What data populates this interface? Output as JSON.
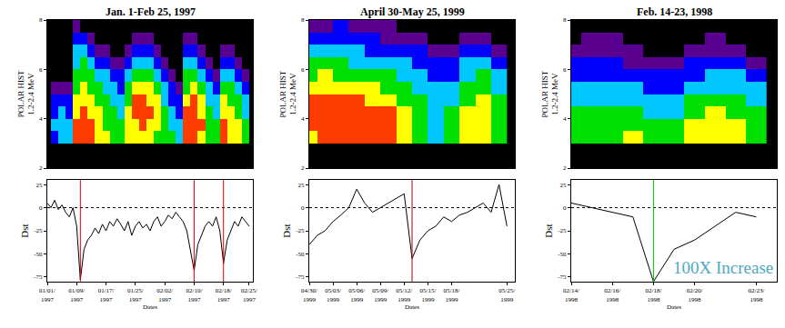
{
  "chart_data": [
    {
      "type": "heatmap",
      "title": "Jan. 1-Feb 25, 1997",
      "y_label": [
        "POLAR HIST",
        "1.2-2.4 MeV"
      ],
      "x": [
        "1997-01-01",
        "1997-01-03",
        "1997-01-05",
        "1997-01-07",
        "1997-01-09",
        "1997-01-11",
        "1997-01-13",
        "1997-01-15",
        "1997-01-17",
        "1997-01-19",
        "1997-01-21",
        "1997-01-23",
        "1997-01-25",
        "1997-01-27",
        "1997-01-29",
        "1997-01-31",
        "1997-02-02",
        "1997-02-04",
        "1997-02-06",
        "1997-02-08",
        "1997-02-10",
        "1997-02-12",
        "1997-02-14",
        "1997-02-16",
        "1997-02-18",
        "1997-02-20",
        "1997-02-22",
        "1997-02-24"
      ],
      "y": [
        3.25,
        3.75,
        4.25,
        4.75,
        5.25,
        5.75,
        6.25,
        6.75,
        7.25,
        7.75
      ],
      "z": [
        [
          0,
          0,
          0,
          0,
          0,
          0,
          0,
          0,
          0,
          0
        ],
        [
          2,
          3,
          2,
          2,
          1,
          0,
          0,
          0,
          0,
          0
        ],
        [
          3,
          3,
          3,
          2,
          1,
          0,
          0,
          0,
          0,
          0
        ],
        [
          3,
          3,
          2,
          2,
          1,
          0,
          0,
          0,
          0,
          0
        ],
        [
          6,
          6,
          5,
          5,
          4,
          4,
          3,
          3,
          2,
          1
        ],
        [
          6,
          6,
          6,
          5,
          5,
          4,
          4,
          3,
          2,
          0
        ],
        [
          6,
          6,
          5,
          5,
          4,
          4,
          3,
          2,
          1,
          0
        ],
        [
          5,
          5,
          5,
          4,
          4,
          3,
          2,
          1,
          0,
          0
        ],
        [
          5,
          4,
          4,
          4,
          3,
          3,
          2,
          1,
          0,
          0
        ],
        [
          4,
          4,
          4,
          3,
          3,
          2,
          1,
          0,
          0,
          0
        ],
        [
          4,
          4,
          3,
          3,
          2,
          2,
          1,
          0,
          0,
          0
        ],
        [
          5,
          5,
          5,
          4,
          4,
          3,
          2,
          1,
          0,
          0
        ],
        [
          5,
          5,
          6,
          6,
          5,
          4,
          3,
          2,
          1,
          0
        ],
        [
          5,
          6,
          6,
          6,
          5,
          4,
          3,
          2,
          1,
          0
        ],
        [
          5,
          5,
          6,
          5,
          5,
          4,
          3,
          2,
          1,
          0
        ],
        [
          4,
          5,
          5,
          5,
          4,
          3,
          2,
          1,
          0,
          0
        ],
        [
          4,
          4,
          4,
          3,
          3,
          2,
          1,
          0,
          0,
          0
        ],
        [
          4,
          3,
          3,
          2,
          2,
          1,
          0,
          0,
          0,
          0
        ],
        [
          3,
          3,
          2,
          2,
          1,
          0,
          0,
          0,
          0,
          0
        ],
        [
          6,
          6,
          6,
          5,
          4,
          4,
          3,
          2,
          1,
          0
        ],
        [
          6,
          6,
          6,
          6,
          5,
          4,
          3,
          2,
          1,
          0
        ],
        [
          5,
          6,
          5,
          5,
          4,
          3,
          2,
          1,
          0,
          0
        ],
        [
          4,
          4,
          4,
          3,
          3,
          2,
          1,
          0,
          0,
          0
        ],
        [
          4,
          4,
          3,
          3,
          2,
          1,
          0,
          0,
          0,
          0
        ],
        [
          6,
          6,
          5,
          5,
          4,
          3,
          2,
          1,
          0,
          0
        ],
        [
          5,
          5,
          5,
          4,
          4,
          3,
          2,
          1,
          0,
          0
        ],
        [
          5,
          5,
          4,
          4,
          3,
          2,
          1,
          0,
          0,
          0
        ],
        [
          4,
          4,
          3,
          3,
          2,
          1,
          0,
          0,
          0,
          0
        ]
      ],
      "zlim": [
        0,
        6
      ],
      "xlim": [
        "1997-01-01",
        "1997-02-26"
      ],
      "ylim": [
        2,
        8
      ],
      "yticks": [
        2,
        4,
        6,
        8
      ],
      "tick_labels": "y"
    },
    {
      "type": "line",
      "y_label": "Dst",
      "x_label": "Dates",
      "color": "#000000",
      "x": [
        "1997-01-01",
        "1997-01-02",
        "1997-01-03",
        "1997-01-04",
        "1997-01-05",
        "1997-01-06",
        "1997-01-07",
        "1997-01-08",
        "1997-01-09",
        "1997-01-10",
        "1997-01-11",
        "1997-01-12",
        "1997-01-13",
        "1997-01-14",
        "1997-01-15",
        "1997-01-16",
        "1997-01-17",
        "1997-01-18",
        "1997-01-19",
        "1997-01-20",
        "1997-01-21",
        "1997-01-22",
        "1997-01-23",
        "1997-01-24",
        "1997-01-25",
        "1997-01-26",
        "1997-01-27",
        "1997-01-28",
        "1997-01-29",
        "1997-01-30",
        "1997-01-31",
        "1997-02-01",
        "1997-02-02",
        "1997-02-03",
        "1997-02-04",
        "1997-02-05",
        "1997-02-06",
        "1997-02-07",
        "1997-02-08",
        "1997-02-09",
        "1997-02-10",
        "1997-02-11",
        "1997-02-12",
        "1997-02-13",
        "1997-02-14",
        "1997-02-15",
        "1997-02-16",
        "1997-02-17",
        "1997-02-18",
        "1997-02-19",
        "1997-02-20",
        "1997-02-21",
        "1997-02-22",
        "1997-02-23",
        "1997-02-24",
        "1997-02-25"
      ],
      "values": [
        5,
        0,
        8,
        -2,
        3,
        -5,
        -10,
        0,
        -20,
        -78,
        -45,
        -35,
        -30,
        -22,
        -28,
        -18,
        -25,
        -15,
        -20,
        -12,
        -18,
        -25,
        -15,
        -30,
        -20,
        -15,
        -22,
        -18,
        -25,
        -15,
        -10,
        -20,
        -15,
        -8,
        -12,
        -5,
        -10,
        -15,
        -25,
        -45,
        -68,
        -40,
        -30,
        -20,
        -15,
        -20,
        -10,
        -25,
        -60,
        -35,
        -25,
        -15,
        -20,
        -10,
        -15,
        -20
      ],
      "xlim": [
        "1997-01-01",
        "1997-02-26"
      ],
      "ylim": [
        -80,
        30
      ],
      "yticks": [
        -75,
        -50,
        -25,
        0,
        25
      ],
      "xticks": [
        {
          "value": "1997-01-01",
          "label": "01/01/1997"
        },
        {
          "value": "1997-01-09",
          "label": "01/09/1997"
        },
        {
          "value": "1997-01-17",
          "label": "01/17/1997"
        },
        {
          "value": "1997-01-25",
          "label": "01/25/1997"
        },
        {
          "value": "1997-02-02",
          "label": "02/02/1997"
        },
        {
          "value": "1997-02-10",
          "label": "02/10/1997"
        },
        {
          "value": "1997-02-18",
          "label": "02/18/1997"
        },
        {
          "value": "1997-02-25",
          "label": "02/25/1997"
        }
      ],
      "hline": 0,
      "vlines": [
        {
          "x": "1997-01-10",
          "color": "#e00000"
        },
        {
          "x": "1997-02-10",
          "color": "#e00000"
        },
        {
          "x": "1997-02-18",
          "color": "#e00000"
        }
      ]
    },
    {
      "type": "heatmap",
      "title": "April 30-May 25, 1999",
      "y_label": [
        "POLAR HIST",
        "1.2-2.4 MeV"
      ],
      "x": [
        "1999-04-30",
        "1999-05-02",
        "1999-05-04",
        "1999-05-06",
        "1999-05-08",
        "1999-05-10",
        "1999-05-12",
        "1999-05-14",
        "1999-05-16",
        "1999-05-18",
        "1999-05-20",
        "1999-05-22",
        "1999-05-24"
      ],
      "y": [
        3.25,
        3.75,
        4.25,
        4.75,
        5.25,
        5.75,
        6.25,
        6.75,
        7.25,
        7.75
      ],
      "z": [
        [
          5,
          6,
          6,
          6,
          5,
          4,
          4,
          3,
          2,
          1
        ],
        [
          6,
          6,
          6,
          6,
          5,
          5,
          4,
          3,
          2,
          1
        ],
        [
          6,
          6,
          6,
          6,
          5,
          4,
          4,
          3,
          2,
          2
        ],
        [
          6,
          6,
          6,
          6,
          5,
          4,
          3,
          3,
          2,
          1
        ],
        [
          6,
          6,
          6,
          5,
          5,
          4,
          3,
          2,
          2,
          1
        ],
        [
          6,
          6,
          6,
          5,
          4,
          4,
          3,
          2,
          1,
          1
        ],
        [
          5,
          5,
          5,
          4,
          4,
          3,
          3,
          2,
          1,
          0
        ],
        [
          4,
          4,
          4,
          4,
          3,
          3,
          2,
          2,
          1,
          0
        ],
        [
          3,
          3,
          3,
          3,
          3,
          2,
          2,
          1,
          0,
          0
        ],
        [
          4,
          4,
          4,
          3,
          3,
          2,
          2,
          1,
          0,
          0
        ],
        [
          5,
          5,
          5,
          4,
          4,
          3,
          3,
          2,
          1,
          0
        ],
        [
          5,
          5,
          5,
          5,
          4,
          4,
          3,
          2,
          1,
          0
        ],
        [
          4,
          4,
          4,
          4,
          3,
          3,
          2,
          1,
          0,
          0
        ]
      ],
      "zlim": [
        0,
        6
      ],
      "xlim": [
        "1999-04-30",
        "1999-05-26"
      ],
      "ylim": [
        2,
        8
      ],
      "yticks": [
        2,
        4,
        6,
        8
      ],
      "tick_labels": "y"
    },
    {
      "type": "line",
      "y_label": "Dst",
      "x_label": "Dates",
      "color": "#000000",
      "x": [
        "1999-04-30",
        "1999-05-01",
        "1999-05-02",
        "1999-05-03",
        "1999-05-04",
        "1999-05-05",
        "1999-05-06",
        "1999-05-07",
        "1999-05-08",
        "1999-05-09",
        "1999-05-10",
        "1999-05-11",
        "1999-05-12",
        "1999-05-13",
        "1999-05-14",
        "1999-05-15",
        "1999-05-16",
        "1999-05-17",
        "1999-05-18",
        "1999-05-19",
        "1999-05-20",
        "1999-05-21",
        "1999-05-22",
        "1999-05-23",
        "1999-05-24",
        "1999-05-25"
      ],
      "values": [
        -40,
        -30,
        -25,
        -15,
        -8,
        0,
        20,
        5,
        -5,
        0,
        5,
        10,
        15,
        -55,
        -35,
        -25,
        -20,
        -10,
        -15,
        -8,
        -5,
        0,
        5,
        -5,
        25,
        -20
      ],
      "xlim": [
        "1999-04-30",
        "1999-05-26"
      ],
      "ylim": [
        -80,
        30
      ],
      "yticks": [
        -75,
        -50,
        -25,
        0,
        25
      ],
      "xticks": [
        {
          "value": "1999-04-30",
          "label": "04/30/1999"
        },
        {
          "value": "1999-05-03",
          "label": "05/03/1999"
        },
        {
          "value": "1999-05-06",
          "label": "05/06/1999"
        },
        {
          "value": "1999-05-09",
          "label": "05/09/1999"
        },
        {
          "value": "1999-05-12",
          "label": "05/12/1999"
        },
        {
          "value": "1999-05-15",
          "label": "05/15/1999"
        },
        {
          "value": "1999-05-18",
          "label": "05/18/1999"
        },
        {
          "value": "1999-05-25",
          "label": "05/25/1999"
        }
      ],
      "hline": 0,
      "vlines": [
        {
          "x": "1999-05-13",
          "color": "#a00000"
        }
      ]
    },
    {
      "type": "heatmap",
      "title": "Feb. 14-23, 1998",
      "y_label": [
        "POLAR HIST",
        "1.2-2.4 MeV"
      ],
      "x": [
        "1998-02-14",
        "1998-02-15",
        "1998-02-16",
        "1998-02-17",
        "1998-02-18",
        "1998-02-19",
        "1998-02-20",
        "1998-02-21",
        "1998-02-22",
        "1998-02-23"
      ],
      "y": [
        3.25,
        3.75,
        4.25,
        4.75,
        5.25,
        5.75,
        6.25,
        6.75,
        7.25,
        7.75
      ],
      "z": [
        [
          4,
          4,
          4,
          3,
          3,
          2,
          2,
          1,
          0,
          0
        ],
        [
          4,
          4,
          4,
          3,
          3,
          2,
          2,
          1,
          1,
          0
        ],
        [
          4,
          4,
          4,
          3,
          3,
          2,
          2,
          1,
          1,
          0
        ],
        [
          5,
          4,
          4,
          3,
          3,
          2,
          1,
          1,
          0,
          0
        ],
        [
          4,
          4,
          3,
          3,
          2,
          2,
          1,
          0,
          0,
          0
        ],
        [
          4,
          4,
          3,
          3,
          2,
          2,
          1,
          0,
          0,
          0
        ],
        [
          5,
          5,
          4,
          4,
          3,
          2,
          2,
          1,
          0,
          0
        ],
        [
          5,
          5,
          5,
          4,
          3,
          3,
          2,
          1,
          1,
          0
        ],
        [
          5,
          5,
          4,
          4,
          3,
          3,
          2,
          1,
          0,
          0
        ],
        [
          4,
          4,
          4,
          3,
          3,
          2,
          1,
          0,
          0,
          0
        ]
      ],
      "zlim": [
        0,
        6
      ],
      "xlim": [
        "1998-02-14",
        "1998-02-24"
      ],
      "ylim": [
        2,
        8
      ],
      "yticks": [
        2,
        4,
        6,
        8
      ],
      "tick_labels": "y"
    },
    {
      "type": "line",
      "y_label": "Dst",
      "x_label": "Dates",
      "color": "#000000",
      "x": [
        "1998-02-14",
        "1998-02-15",
        "1998-02-16",
        "1998-02-17",
        "1998-02-18",
        "1998-02-19",
        "1998-02-20",
        "1998-02-21",
        "1998-02-22",
        "1998-02-23"
      ],
      "values": [
        5,
        0,
        -5,
        -10,
        -80,
        -45,
        -35,
        -20,
        -5,
        -10
      ],
      "xlim": [
        "1998-02-14",
        "1998-02-24"
      ],
      "ylim": [
        -80,
        30
      ],
      "yticks": [
        -75,
        -50,
        -25,
        0,
        25
      ],
      "xticks": [
        {
          "value": "1998-02-14",
          "label": "02/14/1998"
        },
        {
          "value": "1998-02-16",
          "label": "02/16/1998"
        },
        {
          "value": "1998-02-18",
          "label": "02/18/1998"
        },
        {
          "value": "1998-02-20",
          "label": "02/20/1998"
        },
        {
          "value": "1998-02-23",
          "label": "02/23/1998"
        }
      ],
      "hline": 0,
      "vlines": [
        {
          "x": "1998-02-18",
          "color": "#00c000"
        }
      ],
      "annotations": [
        {
          "text": "100X Increase"
        }
      ]
    }
  ]
}
